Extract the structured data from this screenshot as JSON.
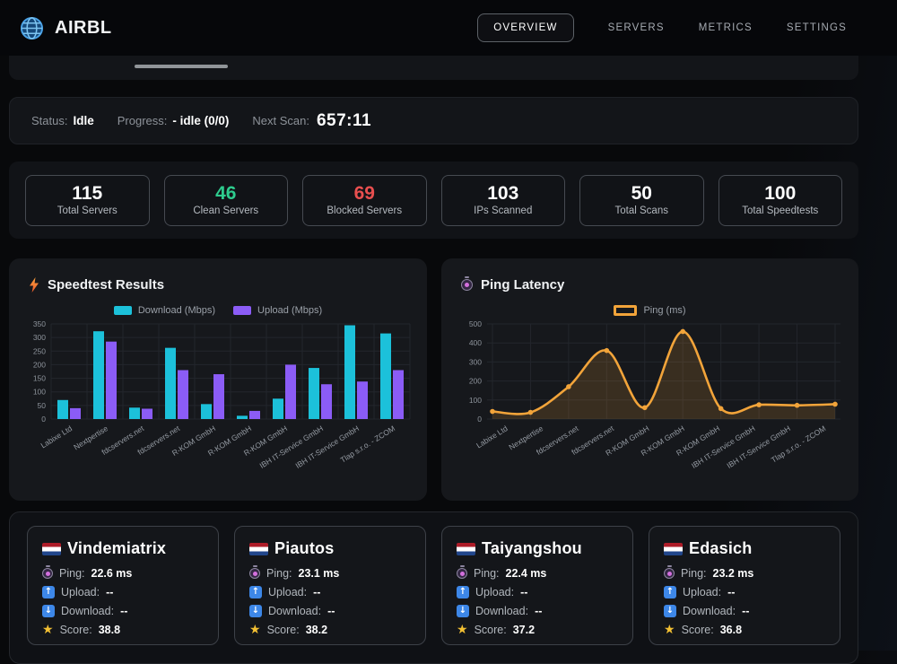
{
  "header": {
    "title": "AIRBL",
    "logo_icon": "globe-icon",
    "nav": [
      {
        "label": "OVERVIEW",
        "active": true
      },
      {
        "label": "SERVERS",
        "active": false
      },
      {
        "label": "METRICS",
        "active": false
      },
      {
        "label": "SETTINGS",
        "active": false
      }
    ]
  },
  "status_bar": {
    "status_label": "Status:",
    "status_value": "Idle",
    "progress_label": "Progress:",
    "progress_value": "- idle (0/0)",
    "next_scan_label": "Next Scan:",
    "next_scan_value": "657:11"
  },
  "stats": {
    "items": [
      {
        "value": "115",
        "label": "Total Servers",
        "color": "#ffffff"
      },
      {
        "value": "46",
        "label": "Clean Servers",
        "color": "#2ecc8e"
      },
      {
        "value": "69",
        "label": "Blocked Servers",
        "color": "#e94f4f"
      },
      {
        "value": "103",
        "label": "IPs Scanned",
        "color": "#ffffff"
      },
      {
        "value": "50",
        "label": "Total Scans",
        "color": "#ffffff"
      },
      {
        "value": "100",
        "label": "Total Speedtests",
        "color": "#ffffff"
      }
    ]
  },
  "chart_data": [
    {
      "type": "bar",
      "title": "Speedtest Results",
      "title_icon": "bolt-icon",
      "categories": [
        "Labixe Ltd",
        "Nextpertise",
        "fdcservers.net",
        "fdcservers.net",
        "R-KOM GmbH",
        "R-KOM GmbH",
        "R-KOM GmbH",
        "IBH IT-Service GmbH",
        "IBH IT-Service GmbH",
        "Tlap s.r.o. - ZCOM"
      ],
      "series": [
        {
          "name": "Download (Mbps)",
          "color": "#1cc1da",
          "values": [
            70,
            323,
            42,
            262,
            55,
            12,
            75,
            188,
            345,
            315
          ]
        },
        {
          "name": "Upload (Mbps)",
          "color": "#8b5cf6",
          "values": [
            40,
            285,
            38,
            180,
            165,
            30,
            200,
            128,
            138,
            180
          ]
        }
      ],
      "xlabel": "",
      "ylabel": "",
      "ylim": [
        0,
        350
      ],
      "ytick_step": 50,
      "grid": true,
      "legend_position": "top"
    },
    {
      "type": "line",
      "title": "Ping Latency",
      "title_icon": "stopwatch-icon",
      "categories": [
        "Labixe Ltd",
        "Nextpertise",
        "fdcservers.net",
        "fdcservers.net",
        "R-KOM GmbH",
        "R-KOM GmbH",
        "R-KOM GmbH",
        "IBH IT-Service GmbH",
        "IBH IT-Service GmbH",
        "Tlap s.r.o. - ZCOM"
      ],
      "series": [
        {
          "name": "Ping (ms)",
          "color": "#f2a43a",
          "fill": "rgba(242,164,58,0.16)",
          "values": [
            40,
            35,
            170,
            360,
            60,
            460,
            55,
            75,
            72,
            78
          ]
        }
      ],
      "xlabel": "",
      "ylabel": "",
      "ylim": [
        0,
        500
      ],
      "ytick_step": 100,
      "grid": true,
      "legend_position": "top",
      "smooth": true,
      "markers": true
    }
  ],
  "servers": {
    "labels": {
      "ping": "Ping:",
      "upload": "Upload:",
      "download": "Download:",
      "score": "Score:"
    },
    "icons": {
      "ping": "stopwatch-icon",
      "upload": "up-arrow-icon",
      "download": "down-arrow-icon",
      "score": "star-icon",
      "flag": "netherlands-flag"
    },
    "items": [
      {
        "name": "Vindemiatrix",
        "ping": "22.6 ms",
        "upload": "--",
        "download": "--",
        "score": "38.8"
      },
      {
        "name": "Piautos",
        "ping": "23.1 ms",
        "upload": "--",
        "download": "--",
        "score": "38.2"
      },
      {
        "name": "Taiyangshou",
        "ping": "22.4 ms",
        "upload": "--",
        "download": "--",
        "score": "37.2"
      },
      {
        "name": "Edasich",
        "ping": "23.2 ms",
        "upload": "--",
        "download": "--",
        "score": "36.8"
      }
    ]
  },
  "arrows": {
    "up": "↑",
    "down": "↓",
    "star": "★"
  }
}
